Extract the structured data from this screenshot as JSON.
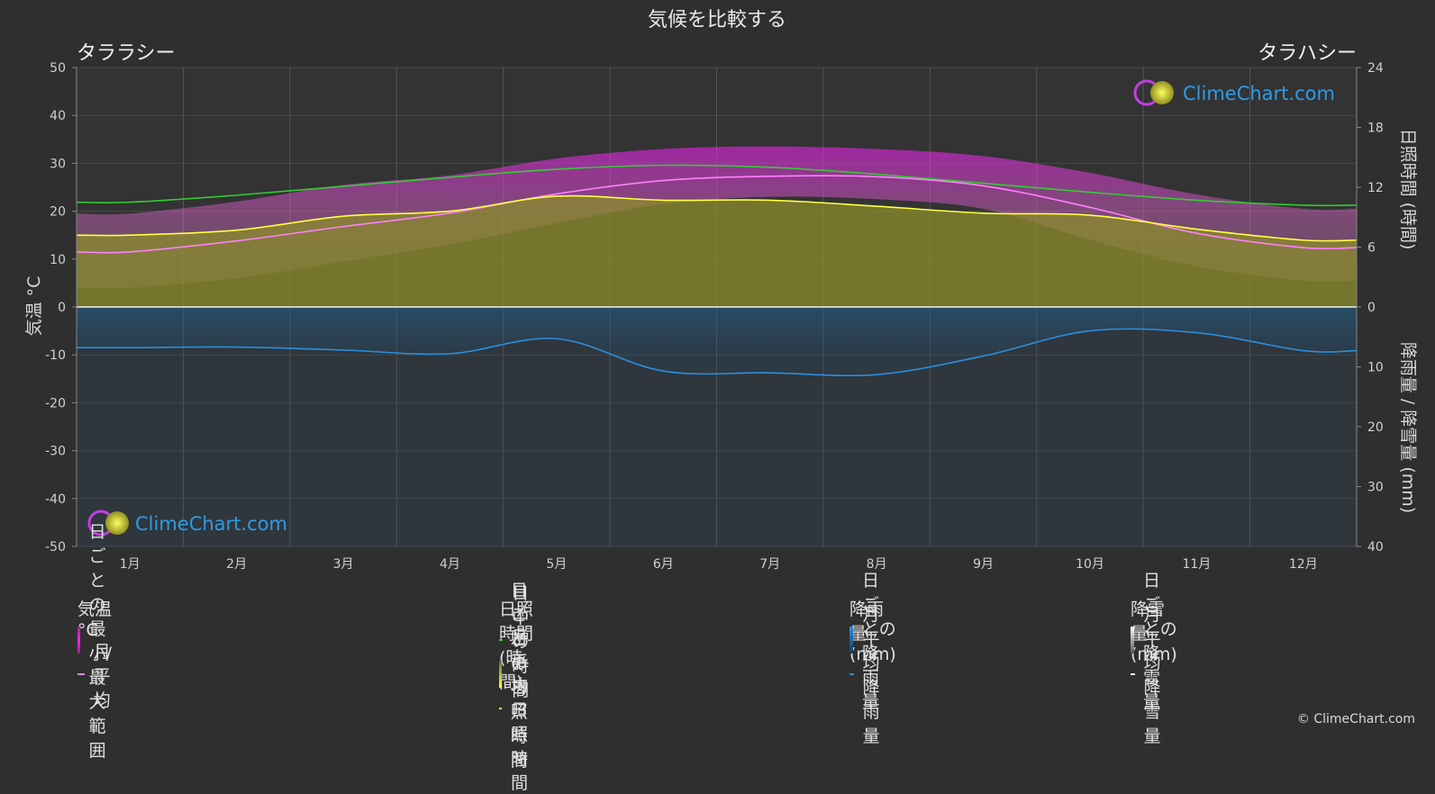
{
  "page": {
    "title": "気候を比較する",
    "location_left": "タララシー",
    "location_right": "タラハシー",
    "copyright": "© ClimeChart.com",
    "logo_text": "ClimeChart.com"
  },
  "colors": {
    "background": "#2f2f2f",
    "temp_range": "#e020e0",
    "temp_avg": "#ff80ff",
    "daylight": "#33cc33",
    "sunshine_daily": "#bcbc3a",
    "sunshine_avg": "#ffff44",
    "rain_daily": "#1f6fa8",
    "rain_avg": "#2a8fe0",
    "snow_daily": "#dddddd",
    "snow_avg": "#ffffff",
    "logo": "#2e9be6"
  },
  "axes": {
    "left_label": "気温 °C",
    "right_top_label": "日照時間 (時間)",
    "right_bottom_label": "降雨量 / 降雪量 (mm)",
    "left_ticks": [
      "50",
      "40",
      "30",
      "20",
      "10",
      "0",
      "-10",
      "-20",
      "-30",
      "-40",
      "-50"
    ],
    "right_top_ticks": [
      "24",
      "18",
      "12",
      "6",
      "0"
    ],
    "right_bottom_ticks": [
      "10",
      "20",
      "30",
      "40"
    ]
  },
  "chart_data": {
    "type": "area",
    "title": "気候を比較する",
    "categories": [
      "1月",
      "2月",
      "3月",
      "4月",
      "5月",
      "6月",
      "7月",
      "8月",
      "9月",
      "10月",
      "11月",
      "12月"
    ],
    "temp_axis_range": [
      -50,
      50
    ],
    "sunshine_axis_range": [
      0,
      24
    ],
    "precip_axis_range": [
      0,
      40
    ],
    "grid": true,
    "series": [
      {
        "name": "日中の時間",
        "axis": "sunshine_hours",
        "values": [
          10.5,
          11.2,
          12.1,
          13.0,
          13.8,
          14.2,
          14.0,
          13.3,
          12.4,
          11.5,
          10.7,
          10.2
        ]
      },
      {
        "name": "月平均日照時間",
        "axis": "sunshine_hours",
        "values": [
          7.2,
          7.7,
          9.1,
          9.6,
          11.1,
          10.7,
          10.7,
          10.1,
          9.4,
          9.2,
          7.8,
          6.7
        ]
      },
      {
        "name": "月平均",
        "axis": "temperature_c",
        "values": [
          11.5,
          13.8,
          16.8,
          19.6,
          23.6,
          26.4,
          27.3,
          27.2,
          25.3,
          20.8,
          15.4,
          12.4
        ]
      },
      {
        "name": "日ごとの最小/最大範囲 (max)",
        "axis": "temperature_c",
        "values": [
          19.5,
          22.0,
          25.5,
          27.5,
          31.0,
          33.0,
          33.5,
          33.0,
          31.5,
          28.0,
          23.5,
          20.5
        ]
      },
      {
        "name": "日ごとの最小/最大範囲 (min)",
        "axis": "temperature_c",
        "values": [
          4.0,
          6.0,
          9.5,
          13.0,
          17.5,
          21.5,
          23.0,
          22.5,
          20.5,
          14.0,
          8.5,
          5.5
        ]
      },
      {
        "name": "月平均降雨量",
        "axis": "precip_mm",
        "values": [
          6.8,
          6.7,
          7.2,
          7.8,
          5.3,
          10.7,
          11.0,
          11.3,
          8.2,
          4.0,
          4.3,
          7.3
        ]
      },
      {
        "name": "月平均降雪量",
        "axis": "precip_mm",
        "values": [
          0,
          0,
          0,
          0,
          0,
          0,
          0,
          0,
          0,
          0,
          0,
          0
        ]
      }
    ]
  },
  "legend": {
    "groups": [
      {
        "title": "気温 °C",
        "items": [
          {
            "label": "日ごとの最小/最大範囲",
            "kind": "box",
            "color_key": "temp_range"
          },
          {
            "label": "月平均",
            "kind": "line",
            "color_key": "temp_avg"
          }
        ]
      },
      {
        "title": "日照時間 (時間)",
        "items": [
          {
            "label": "日中の時間",
            "kind": "line",
            "color_key": "daylight"
          },
          {
            "label": "日ごとの日照時間",
            "kind": "box",
            "color_key": "sunshine_daily"
          },
          {
            "label": "月平均日照時間",
            "kind": "line",
            "color_key": "sunshine_avg"
          }
        ]
      },
      {
        "title": "降雨量 (mm)",
        "items": [
          {
            "label": "日ごとの降雨量",
            "kind": "box",
            "color_key": "rain_daily"
          },
          {
            "label": "月平均降雨量",
            "kind": "line",
            "color_key": "rain_avg"
          }
        ]
      },
      {
        "title": "降雪量 (mm)",
        "items": [
          {
            "label": "日ごとの降雪量",
            "kind": "box",
            "color_key": "snow_daily"
          },
          {
            "label": "月平均降雪量",
            "kind": "line",
            "color_key": "snow_avg"
          }
        ]
      }
    ]
  }
}
